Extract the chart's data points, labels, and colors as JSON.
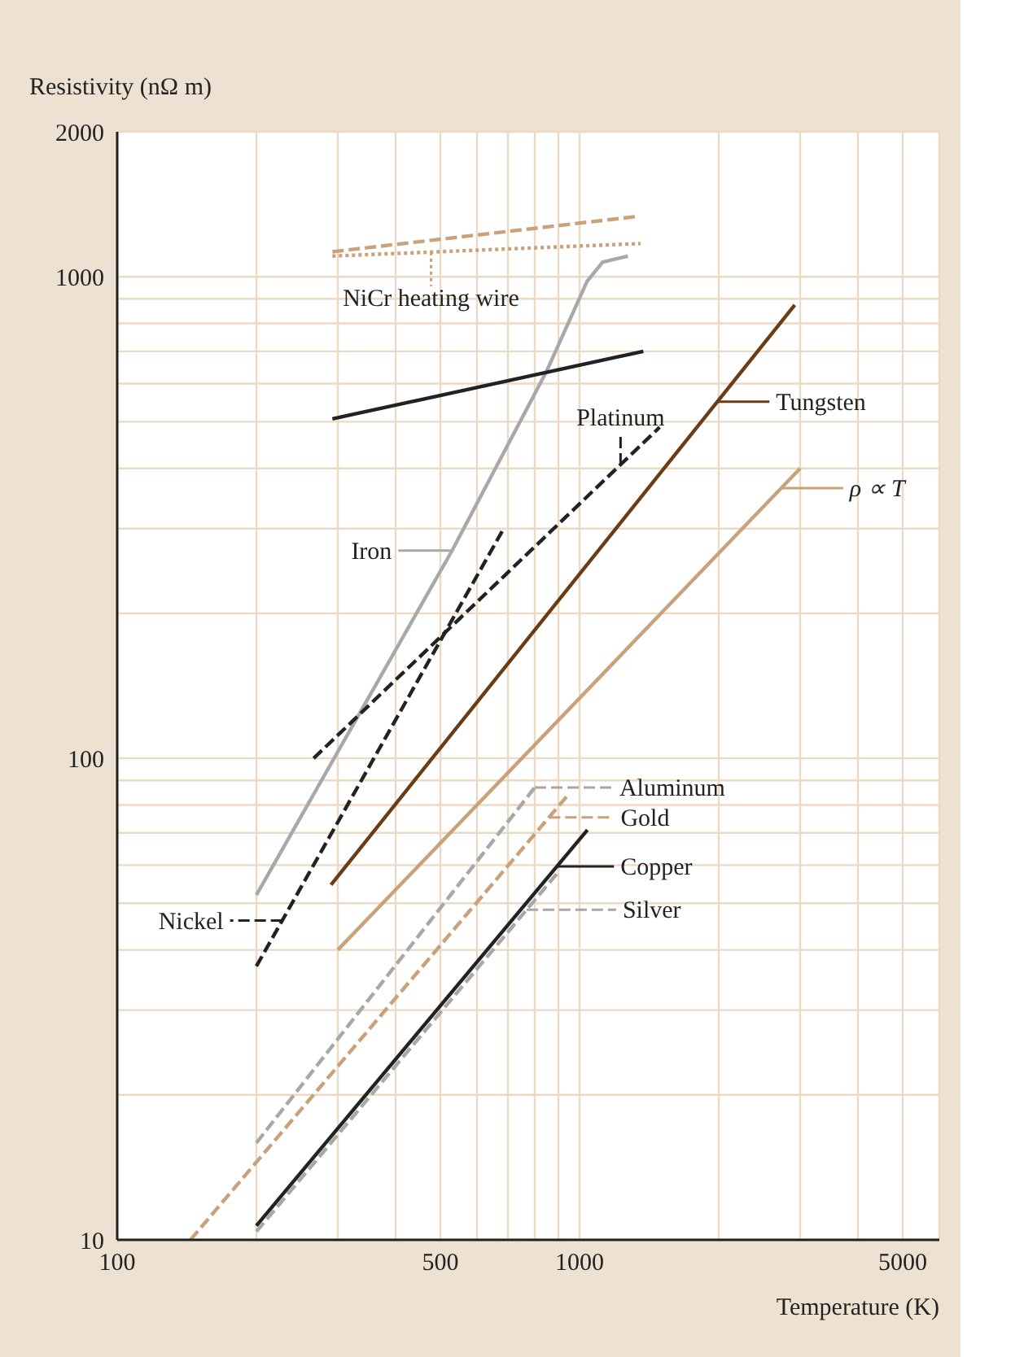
{
  "chart_data": {
    "type": "line",
    "xlabel": "Temperature (K)",
    "ylabel": "Resistivity (nΩ m)",
    "log": "xy",
    "legend": "right",
    "grid": true,
    "marker": "none",
    "xlim": [
      100,
      6000
    ],
    "xticks": [
      100,
      {
        "value": 200,
        "label": null
      },
      {
        "value": 300,
        "label": null
      },
      {
        "value": 400,
        "label": null
      },
      500,
      {
        "value": 600,
        "label": null
      },
      {
        "value": 700,
        "label": null
      },
      {
        "value": 800,
        "label": null
      },
      {
        "value": 900,
        "label": null
      },
      1000,
      {
        "value": 2000,
        "label": null
      },
      {
        "value": 3000,
        "label": null
      },
      {
        "value": 4000,
        "label": null
      },
      5000
    ],
    "ylim": [
      10,
      2000
    ],
    "yticks": [
      10,
      {
        "value": 20,
        "label": null
      },
      {
        "value": 30,
        "label": null
      },
      {
        "value": 40,
        "label": null
      },
      {
        "value": 50,
        "label": null
      },
      {
        "value": 60,
        "label": null
      },
      {
        "value": 70,
        "label": null
      },
      {
        "value": 80,
        "label": null
      },
      {
        "value": 90,
        "label": null
      },
      100,
      {
        "value": 200,
        "label": null
      },
      {
        "value": 300,
        "label": null
      },
      {
        "value": 400,
        "label": null
      },
      {
        "value": 500,
        "label": null
      },
      {
        "value": 600,
        "label": null
      },
      {
        "value": 700,
        "label": null
      },
      {
        "value": 800,
        "label": null
      },
      {
        "value": 900,
        "label": null
      },
      1000,
      2000
    ],
    "series": [
      {
        "name": "Silver",
        "color": "#a8a8a8",
        "line_style": "dashed",
        "x": [
          200,
          907
        ],
        "values": [
          10.4,
          58.6
        ]
      },
      {
        "name": "Copper",
        "color": "#222222",
        "line_style": "solid",
        "x": [
          200,
          1040
        ],
        "values": [
          10.7,
          71
        ]
      },
      {
        "name": "Gold",
        "color": "#c9a27c",
        "line_style": "dashed",
        "x": [
          144,
          945
        ],
        "values": [
          10,
          84
        ]
      },
      {
        "name": "Aluminum",
        "color": "#a8a8a8",
        "line_style": "dashed",
        "x": [
          200,
          800
        ],
        "values": [
          15.9,
          87
        ]
      },
      {
        "name": "ρ ∝ T",
        "color": "#c9a27c",
        "line_style": "solid",
        "x": [
          300,
          3000
        ],
        "values": [
          40,
          400
        ]
      },
      {
        "name": "Tungsten",
        "color": "#6b3d17",
        "line_style": "solid",
        "x": [
          290,
          2920
        ],
        "values": [
          54.6,
          874
        ]
      },
      {
        "name": "Nickel",
        "color": "#222222",
        "line_style": "dashed",
        "x": [
          200,
          680
        ],
        "values": [
          37,
          296
        ]
      },
      {
        "name": "Iron",
        "color": "#a8a8a8",
        "line_style": "solid",
        "x": [
          200,
          530,
          847,
          1038,
          1122,
          1272
        ],
        "values": [
          52,
          270,
          634,
          978,
          1073,
          1104
        ]
      },
      {
        "name": "Platinum",
        "color": "#222222",
        "line_style": "dashed",
        "x": [
          266,
          1490
        ],
        "values": [
          100,
          487
        ]
      },
      {
        "color": "#222222",
        "line_style": "solid",
        "x": [
          292,
          1374
        ],
        "values": [
          507,
          700
        ]
      },
      {
        "name": "NiCr heating wire",
        "color": "#c9a27c",
        "line_style": "dotted",
        "x": [
          292,
          1355
        ],
        "values": [
          1104,
          1172
        ]
      },
      {
        "color": "#c9a27c",
        "line_style": "dashed",
        "x": [
          292,
          1330
        ],
        "values": [
          1127,
          1334
        ]
      }
    ]
  }
}
